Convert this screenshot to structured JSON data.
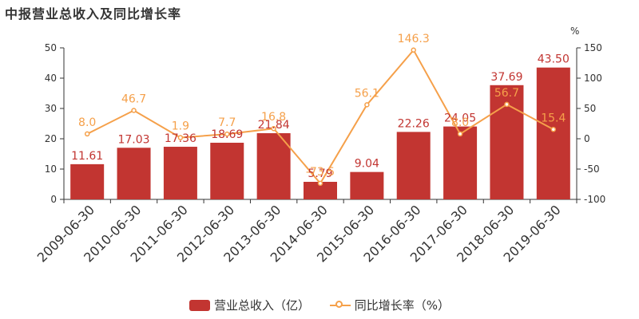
{
  "title": "中报营业总收入及同比增长率",
  "colors": {
    "bar": "#c23531",
    "line": "#f5a04a",
    "axis": "#333333",
    "text": "#333333"
  },
  "chart_data": {
    "type": "bar",
    "categories": [
      "2009-06-30",
      "2010-06-30",
      "2011-06-30",
      "2012-06-30",
      "2013-06-30",
      "2014-06-30",
      "2015-06-30",
      "2016-06-30",
      "2017-06-30",
      "2018-06-30",
      "2019-06-30"
    ],
    "series": [
      {
        "name": "营业总收入（亿）",
        "type": "bar",
        "axis": "left",
        "values": [
          11.61,
          17.03,
          17.36,
          18.69,
          21.84,
          5.79,
          9.04,
          22.26,
          24.05,
          37.69,
          43.5
        ],
        "labels": [
          "11.61",
          "17.03",
          "17.36",
          "18.69",
          "21.84",
          "5.79",
          "9.04",
          "22.26",
          "24.05",
          "37.69",
          "43.50"
        ]
      },
      {
        "name": "同比增长率（%）",
        "type": "line",
        "axis": "right",
        "values": [
          8.0,
          46.7,
          1.9,
          7.7,
          16.8,
          -73.5,
          56.1,
          146.3,
          8.0,
          56.7,
          15.4
        ],
        "labels": [
          "8.0",
          "46.7",
          "1.9",
          "7.7",
          "16.8",
          "-73.5",
          "56.1",
          "146.3",
          "8.0",
          "56.7",
          "15.4"
        ]
      }
    ],
    "ylim_left": [
      0,
      50
    ],
    "yticks_left": [
      "0",
      "10",
      "20",
      "30",
      "40",
      "50"
    ],
    "ylim_right": [
      -100,
      150
    ],
    "yticks_right": [
      "-100",
      "-50",
      "0",
      "50",
      "100",
      "150"
    ],
    "ylabel_right": "%",
    "legend_position": "bottom-center",
    "grid": false
  }
}
